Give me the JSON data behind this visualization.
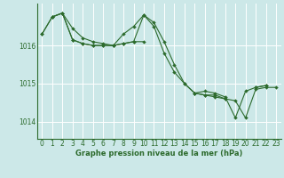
{
  "title": "Graphe pression niveau de la mer (hPa)",
  "background_color": "#cce8e8",
  "grid_color": "#ffffff",
  "line_color": "#2d6b2d",
  "ylim": [
    1013.55,
    1017.1
  ],
  "xlim": [
    -0.5,
    23.5
  ],
  "yticks": [
    1014,
    1015,
    1016
  ],
  "xticks": [
    0,
    1,
    2,
    3,
    4,
    5,
    6,
    7,
    8,
    9,
    10,
    11,
    12,
    13,
    14,
    15,
    16,
    17,
    18,
    19,
    20,
    21,
    22,
    23
  ],
  "series": [
    [
      1016.3,
      1016.75,
      1016.85,
      1016.15,
      1016.05,
      1016.0,
      1016.0,
      1016.0,
      1016.05,
      1016.1,
      1016.8,
      1016.5,
      1015.8,
      1015.3,
      1015.0,
      1014.75,
      1014.7,
      1014.65,
      1014.6,
      1014.55,
      1014.1,
      1014.85,
      1014.9,
      1014.9
    ],
    [
      null,
      1016.75,
      1016.85,
      1016.15,
      1016.05,
      1016.0,
      1016.0,
      1016.0,
      1016.05,
      1016.1,
      1016.1,
      null,
      null,
      null,
      null,
      1014.75,
      1014.7,
      1014.7,
      1014.6,
      null,
      null,
      null,
      null,
      null
    ],
    [
      1016.3,
      1016.75,
      1016.85,
      1016.45,
      1016.2,
      1016.1,
      1016.05,
      1016.0,
      1016.3,
      1016.5,
      1016.8,
      1016.6,
      1016.1,
      1015.5,
      1015.0,
      1014.75,
      1014.8,
      1014.75,
      1014.65,
      1014.1,
      1014.8,
      1014.9,
      1014.95,
      null
    ],
    [
      null,
      null,
      null,
      null,
      null,
      null,
      null,
      null,
      null,
      null,
      null,
      null,
      null,
      null,
      null,
      null,
      null,
      null,
      null,
      null,
      null,
      1014.9,
      1014.95,
      null
    ]
  ],
  "marker_size": 2.0,
  "line_width": 0.8,
  "xlabel_fontsize": 6.0,
  "tick_fontsize": 5.5
}
